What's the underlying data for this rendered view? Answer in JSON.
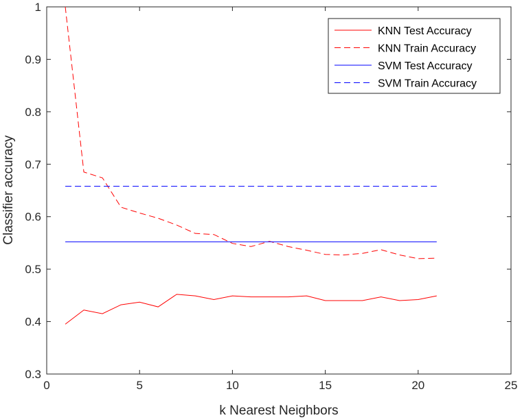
{
  "chart_data": {
    "type": "line",
    "xlabel": "k Nearest Neighbors",
    "ylabel": "Classifier accuracy",
    "xlim": [
      0,
      25
    ],
    "ylim": [
      0.3,
      1
    ],
    "xticks": [
      0,
      5,
      10,
      15,
      20,
      25
    ],
    "yticks": [
      0.3,
      0.4,
      0.5,
      0.6,
      0.7,
      0.8,
      0.9,
      1
    ],
    "grid": false,
    "legend_position": "top-right",
    "series": [
      {
        "name": "KNN Test Accuracy",
        "color": "#ff0000",
        "style": "solid",
        "x": [
          1,
          2,
          3,
          4,
          5,
          6,
          7,
          8,
          9,
          10,
          11,
          12,
          13,
          14,
          15,
          16,
          17,
          18,
          19,
          20,
          21
        ],
        "y": [
          0.395,
          0.422,
          0.415,
          0.432,
          0.437,
          0.428,
          0.452,
          0.449,
          0.442,
          0.449,
          0.447,
          0.447,
          0.447,
          0.449,
          0.44,
          0.44,
          0.44,
          0.447,
          0.44,
          0.442,
          0.449
        ]
      },
      {
        "name": "KNN Train Accuracy",
        "color": "#ff0000",
        "style": "dashed",
        "x": [
          1,
          2,
          3,
          4,
          5,
          6,
          7,
          8,
          9,
          10,
          11,
          12,
          13,
          14,
          15,
          16,
          17,
          18,
          19,
          20,
          21
        ],
        "y": [
          1.0,
          0.685,
          0.674,
          0.618,
          0.607,
          0.597,
          0.584,
          0.568,
          0.566,
          0.549,
          0.543,
          0.553,
          0.543,
          0.536,
          0.528,
          0.527,
          0.53,
          0.537,
          0.527,
          0.52,
          0.521
        ]
      },
      {
        "name": "SVM Test Accuracy",
        "color": "#0000ff",
        "style": "solid",
        "x": [
          1,
          21
        ],
        "y": [
          0.552,
          0.552
        ]
      },
      {
        "name": "SVM Train Accuracy",
        "color": "#0000ff",
        "style": "dashed",
        "x": [
          1,
          21
        ],
        "y": [
          0.658,
          0.658
        ]
      }
    ]
  }
}
